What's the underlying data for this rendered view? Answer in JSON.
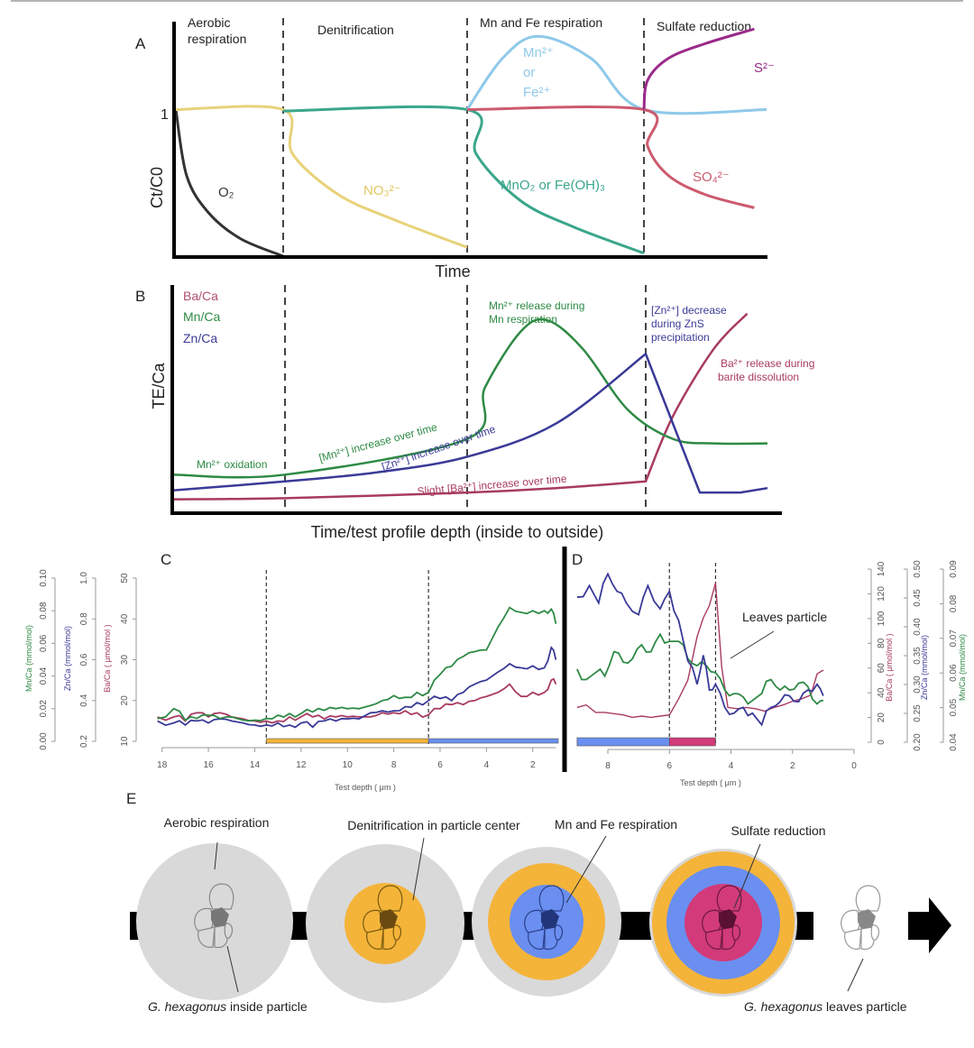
{
  "figure": {
    "panel_labels": {
      "a": "A",
      "b": "B",
      "c": "C",
      "d": "D",
      "e": "E"
    },
    "colors": {
      "o2": "#333333",
      "no3": "#e8d27a",
      "mno2": "#3aa68c",
      "mn2": "#8fc9ea",
      "so4": "#cc5a6e",
      "s2": "#9a2a8a",
      "ba": "#a83a62",
      "mn": "#2e8a45",
      "zn": "#3a3a98",
      "gray": "#d9d9d9",
      "orange": "#f4b43a",
      "blue": "#6a8ff0",
      "magenta": "#d23a7a",
      "arrow": "#000000"
    }
  },
  "panel_a": {
    "phases": [
      "Aerobic respiration",
      "Denitrification",
      "Mn and Fe respiration",
      "Sulfate reduction"
    ],
    "phase_aerobic_line1": "Aerobic",
    "phase_aerobic_line2": "respiration",
    "y_tick": "1",
    "y_label": "Ct/C0",
    "x_label": "Time",
    "labels": {
      "o2": "O₂",
      "no3": "NO₃²⁻",
      "mno2": "MnO₂ or Fe(OH)₃",
      "mn2_1": "Mn²⁺",
      "mn2_2": "or",
      "mn2_3": "Fe²⁺",
      "so4": "SO₄²⁻",
      "s2": "S²⁻"
    }
  },
  "panel_b": {
    "legend": [
      "Ba/Ca",
      "Mn/Ca",
      "Zn/Ca"
    ],
    "y_label": "TE/Ca",
    "x_label": "Time/test profile depth (inside to outside)",
    "annotations": {
      "mn_ox": "Mn²⁺ oxidation",
      "mn_inc": "[Mn²⁺] increase over time",
      "zn_inc": "[Zn²⁺] increase over time",
      "ba_inc": "Slight [Ba²⁺] increase over time",
      "mn_rel1": "Mn²⁺ release during",
      "mn_rel2": "Mn respiration",
      "zn_dec1": "[Zn²⁺] decrease",
      "zn_dec2": "during ZnS",
      "zn_dec3": "precipitation",
      "ba_rel1": "Ba²⁺ release during",
      "ba_rel2": "barite dissolution"
    }
  },
  "chart_data": [
    {
      "panel": "A",
      "type": "line",
      "title": "",
      "xlabel": "Time",
      "ylabel": "Ct/C0",
      "x_range": [
        0,
        4
      ],
      "y_range": [
        0,
        1.6
      ],
      "phase_boundaries": [
        1,
        2,
        3
      ],
      "series": [
        {
          "name": "O2",
          "color_key": "o2",
          "points": [
            [
              0,
              1
            ],
            [
              0.1,
              0.55
            ],
            [
              0.3,
              0.3
            ],
            [
              0.6,
              0.12
            ],
            [
              1,
              0
            ]
          ]
        },
        {
          "name": "NO3 2-",
          "color_key": "no3",
          "points": [
            [
              0,
              1
            ],
            [
              1,
              1
            ],
            [
              1.05,
              0.7
            ],
            [
              1.3,
              0.42
            ],
            [
              1.6,
              0.25
            ],
            [
              2,
              0.06
            ]
          ]
        },
        {
          "name": "MnO2 or Fe(OH)3",
          "color_key": "mno2",
          "points": [
            [
              1,
              0.99
            ],
            [
              2,
              1
            ],
            [
              2.05,
              0.7
            ],
            [
              2.3,
              0.38
            ],
            [
              2.6,
              0.2
            ],
            [
              3,
              0.02
            ]
          ]
        },
        {
          "name": "Mn2+ or Fe2+",
          "color_key": "mn2",
          "points": [
            [
              2,
              1
            ],
            [
              2.2,
              1.35
            ],
            [
              2.4,
              1.5
            ],
            [
              2.7,
              1.35
            ],
            [
              3,
              1
            ],
            [
              4,
              1
            ]
          ]
        },
        {
          "name": "SO4 2-",
          "color_key": "so4",
          "points": [
            [
              2,
              1
            ],
            [
              3,
              1
            ],
            [
              3.03,
              0.75
            ],
            [
              3.2,
              0.55
            ],
            [
              3.5,
              0.42
            ],
            [
              3.9,
              0.33
            ]
          ]
        },
        {
          "name": "S2-",
          "color_key": "s2",
          "points": [
            [
              3,
              1
            ],
            [
              3.03,
              1.2
            ],
            [
              3.2,
              1.35
            ],
            [
              3.5,
              1.45
            ],
            [
              3.9,
              1.55
            ]
          ]
        }
      ]
    },
    {
      "panel": "B",
      "type": "line",
      "title": "",
      "xlabel": "Time/test profile depth (inside to outside)",
      "ylabel": "TE/Ca",
      "x_range": [
        0,
        4
      ],
      "y_range": [
        0,
        1
      ],
      "phase_boundaries": [
        1,
        2,
        3
      ],
      "legend": [
        "Ba/Ca",
        "Mn/Ca",
        "Zn/Ca"
      ],
      "series": [
        {
          "name": "Ba/Ca",
          "color_key": "ba",
          "points": [
            [
              0,
              0.05
            ],
            [
              1,
              0.055
            ],
            [
              2,
              0.08
            ],
            [
              2.5,
              0.1
            ],
            [
              3,
              0.13
            ],
            [
              3.2,
              0.42
            ],
            [
              3.5,
              0.72
            ],
            [
              3.75,
              0.88
            ]
          ]
        },
        {
          "name": "Mn/Ca",
          "color_key": "mn",
          "points": [
            [
              0,
              0.16
            ],
            [
              1,
              0.16
            ],
            [
              2,
              0.32
            ],
            [
              2.1,
              0.55
            ],
            [
              2.3,
              0.8
            ],
            [
              2.45,
              0.85
            ],
            [
              2.65,
              0.72
            ],
            [
              2.9,
              0.45
            ],
            [
              3.2,
              0.32
            ],
            [
              3.5,
              0.3
            ],
            [
              3.9,
              0.3
            ]
          ]
        },
        {
          "name": "Zn/Ca",
          "color_key": "zn",
          "points": [
            [
              0,
              0.09
            ],
            [
              1,
              0.13
            ],
            [
              1.5,
              0.17
            ],
            [
              2,
              0.24
            ],
            [
              2.5,
              0.39
            ],
            [
              3,
              0.7
            ],
            [
              3.4,
              0.08
            ],
            [
              3.7,
              0.08
            ],
            [
              3.9,
              0.1
            ]
          ]
        }
      ]
    },
    {
      "panel": "C",
      "type": "line",
      "xlabel": "Test depth ( μm )",
      "x_ticks": [
        "18",
        "16",
        "14",
        "12",
        "10",
        "8",
        "6",
        "4",
        "2"
      ],
      "x_range": [
        18.3,
        0.9
      ],
      "x_reversed": true,
      "boundaries": [
        13.5,
        6.5
      ],
      "bars": [
        {
          "from": 13.5,
          "to": 6.5,
          "color_key": "orange"
        },
        {
          "from": 6.5,
          "to": 0.9,
          "color_key": "blue"
        }
      ],
      "axes": [
        {
          "label": "Mn/Ca (mmol/mol)",
          "color_key": "mn",
          "range": [
            0,
            0.1
          ],
          "ticks": [
            "0.00",
            "0.02",
            "0.04",
            "0.06",
            "0.08",
            "0.10"
          ]
        },
        {
          "label": "Zn/Ca (mmol/mol)",
          "color_key": "zn",
          "range": [
            0.2,
            1.0
          ],
          "ticks": [
            "0.2",
            "0.4",
            "0.6",
            "0.8",
            "1.0"
          ]
        },
        {
          "label": "Ba/Ca ( μmol/mol )",
          "color_key": "ba",
          "range": [
            10,
            50
          ],
          "ticks": [
            "10",
            "20",
            "30",
            "40",
            "50"
          ]
        }
      ],
      "series": [
        {
          "name": "Mn/Ca",
          "color_key": "mn",
          "x": [
            18.2,
            17.5,
            17,
            16.5,
            16,
            15.5,
            15,
            14.5,
            14,
            13.5,
            13,
            12.5,
            12,
            11.5,
            11,
            10.5,
            10,
            9.5,
            9,
            8.5,
            8,
            7.5,
            7,
            6.5,
            6,
            5.5,
            5,
            4.5,
            4,
            3.5,
            3,
            2.5,
            2,
            1.5,
            1.2,
            1
          ],
          "values": [
            0.014,
            0.02,
            0.013,
            0.014,
            0.016,
            0.014,
            0.015,
            0.013,
            0.013,
            0.014,
            0.016,
            0.017,
            0.017,
            0.018,
            0.019,
            0.02,
            0.02,
            0.02,
            0.022,
            0.025,
            0.028,
            0.027,
            0.03,
            0.03,
            0.041,
            0.046,
            0.052,
            0.055,
            0.056,
            0.07,
            0.082,
            0.079,
            0.08,
            0.08,
            0.081,
            0.072
          ]
        },
        {
          "name": "Zn/Ca",
          "color_key": "zn",
          "x": [
            18.2,
            17.5,
            17,
            16.5,
            16,
            15.5,
            15,
            14.5,
            14,
            13.5,
            13,
            12.5,
            12,
            11.5,
            11,
            10.5,
            10,
            9.5,
            9,
            8.5,
            8,
            7.5,
            7,
            6.5,
            6,
            5.5,
            5,
            4.5,
            4,
            3.5,
            3,
            2.5,
            2,
            1.5,
            1.2,
            1
          ],
          "values": [
            0.3,
            0.29,
            0.28,
            0.3,
            0.29,
            0.31,
            0.3,
            0.29,
            0.28,
            0.28,
            0.29,
            0.28,
            0.29,
            0.27,
            0.3,
            0.3,
            0.31,
            0.31,
            0.34,
            0.35,
            0.35,
            0.37,
            0.39,
            0.4,
            0.41,
            0.4,
            0.44,
            0.48,
            0.5,
            0.54,
            0.58,
            0.56,
            0.57,
            0.56,
            0.66,
            0.6
          ]
        },
        {
          "name": "Ba/Ca",
          "color_key": "ba",
          "x": [
            18.2,
            17.5,
            17,
            16.5,
            16,
            15.5,
            15,
            14.5,
            14,
            13.5,
            13,
            12.5,
            12,
            11.5,
            11,
            10.5,
            10,
            9.5,
            9,
            8.5,
            8,
            7.5,
            7,
            6.5,
            6,
            5.5,
            5,
            4.5,
            4,
            3.5,
            3,
            2.5,
            2,
            1.5,
            1.2,
            1
          ],
          "values": [
            16,
            16,
            15,
            17,
            16,
            17,
            16,
            15.5,
            15,
            15,
            15,
            16,
            16,
            16,
            15.5,
            16,
            16,
            16,
            16,
            17,
            17,
            17.5,
            17,
            16.5,
            18,
            19,
            19,
            20,
            21,
            22,
            24,
            21,
            22,
            22,
            25,
            24
          ]
        }
      ]
    },
    {
      "panel": "D",
      "type": "line",
      "xlabel": "Test depth ( μm )",
      "x_ticks": [
        "8",
        "6",
        "4",
        "2",
        "0"
      ],
      "x_range": [
        9.2,
        0
      ],
      "x_reversed": true,
      "boundaries": [
        6,
        4.5
      ],
      "bars": [
        {
          "from": 9,
          "to": 6,
          "color_key": "blue"
        },
        {
          "from": 6,
          "to": 4.5,
          "color_key": "magenta"
        }
      ],
      "annotation": "Leaves particle",
      "axes": [
        {
          "label": "Ba/Ca ( μmol/mol )",
          "color_key": "ba",
          "range": [
            0,
            140
          ],
          "ticks": [
            "0",
            "20",
            "40",
            "60",
            "80",
            "100",
            "120",
            "140"
          ]
        },
        {
          "label": "Zn/Ca (mmol/mol)",
          "color_key": "zn",
          "range": [
            0.2,
            0.5
          ],
          "ticks": [
            "0.20",
            "0.25",
            "0.30",
            "0.35",
            "0.40",
            "0.45",
            "0.50"
          ]
        },
        {
          "label": "Mn/Ca (mmol/mol)",
          "color_key": "mn",
          "range": [
            0.04,
            0.09
          ],
          "ticks": [
            "0.04",
            "0.05",
            "0.06",
            "0.07",
            "0.08",
            "0.09"
          ]
        }
      ],
      "series": [
        {
          "name": "Zn/Ca",
          "color_key": "zn",
          "x": [
            9,
            8.6,
            8.3,
            8,
            7.7,
            7.4,
            7,
            6.7,
            6.3,
            6,
            5.7,
            5.4,
            5.1,
            4.9,
            4.7,
            4.5,
            4.2,
            3.9,
            3.6,
            3.3,
            3,
            2.7,
            2.4,
            2.1,
            1.8,
            1.5,
            1.2,
            1
          ],
          "values": [
            0.45,
            0.47,
            0.44,
            0.49,
            0.46,
            0.44,
            0.42,
            0.47,
            0.43,
            0.46,
            0.41,
            0.34,
            0.3,
            0.35,
            0.29,
            0.3,
            0.26,
            0.25,
            0.26,
            0.25,
            0.23,
            0.26,
            0.27,
            0.28,
            0.27,
            0.29,
            0.3,
            0.28
          ]
        },
        {
          "name": "Mn/Ca",
          "color_key": "mn",
          "x": [
            9,
            8.7,
            8.4,
            8.1,
            7.8,
            7.5,
            7.2,
            6.9,
            6.6,
            6.3,
            6,
            5.7,
            5.4,
            5.1,
            4.8,
            4.5,
            4.2,
            3.9,
            3.6,
            3.3,
            3,
            2.7,
            2.4,
            2.1,
            1.8,
            1.5,
            1.2,
            1
          ],
          "values": [
            0.061,
            0.058,
            0.06,
            0.059,
            0.066,
            0.063,
            0.064,
            0.068,
            0.066,
            0.071,
            0.069,
            0.069,
            0.064,
            0.062,
            0.062,
            0.06,
            0.055,
            0.054,
            0.053,
            0.052,
            0.054,
            0.058,
            0.055,
            0.055,
            0.057,
            0.056,
            0.051,
            0.052
          ]
        },
        {
          "name": "Ba/Ca",
          "color_key": "ba",
          "x": [
            9,
            8.7,
            8.4,
            8.1,
            7.8,
            7.5,
            7.2,
            6.9,
            6.6,
            6.3,
            6,
            5.7,
            5.4,
            5.1,
            4.9,
            4.7,
            4.5,
            4.3,
            4.1,
            3.8,
            3.5,
            3.2,
            2.9,
            2.6,
            2.3,
            2,
            1.7,
            1.4,
            1.2,
            1
          ],
          "values": [
            28,
            30,
            24,
            24,
            23,
            22,
            20,
            21,
            20,
            21,
            22,
            35,
            50,
            85,
            100,
            110,
            128,
            60,
            28,
            27,
            28,
            27,
            25,
            28,
            30,
            33,
            35,
            38,
            55,
            58
          ]
        }
      ]
    }
  ],
  "panel_c": {
    "x_label": "Test depth ( μm )",
    "ylab_mn": "Mn/Ca (mmol/mol)",
    "ylab_zn": "Zn/Ca (mmol/mol)",
    "ylab_ba": "Ba/Ca ( μmol/mol )"
  },
  "panel_d": {
    "x_label": "Test depth ( μm )",
    "annotation": "Leaves particle",
    "ylab_ba": "Ba/Ca ( μmol/mol )",
    "ylab_zn": "Zn/Ca (mmol/mol)",
    "ylab_mn": "Mn/Ca (mmol/mol)"
  },
  "panel_e": {
    "stages": [
      {
        "label": "Aerobic respiration"
      },
      {
        "label": "Denitrification in particle center"
      },
      {
        "label": "Mn and Fe respiration"
      },
      {
        "label": "Sulfate reduction"
      }
    ],
    "caption_inside_italic": "G. hexagonus",
    "caption_inside_rest": " inside particle",
    "caption_leaves_italic": "G. hexagonus",
    "caption_leaves_rest": " leaves particle"
  }
}
